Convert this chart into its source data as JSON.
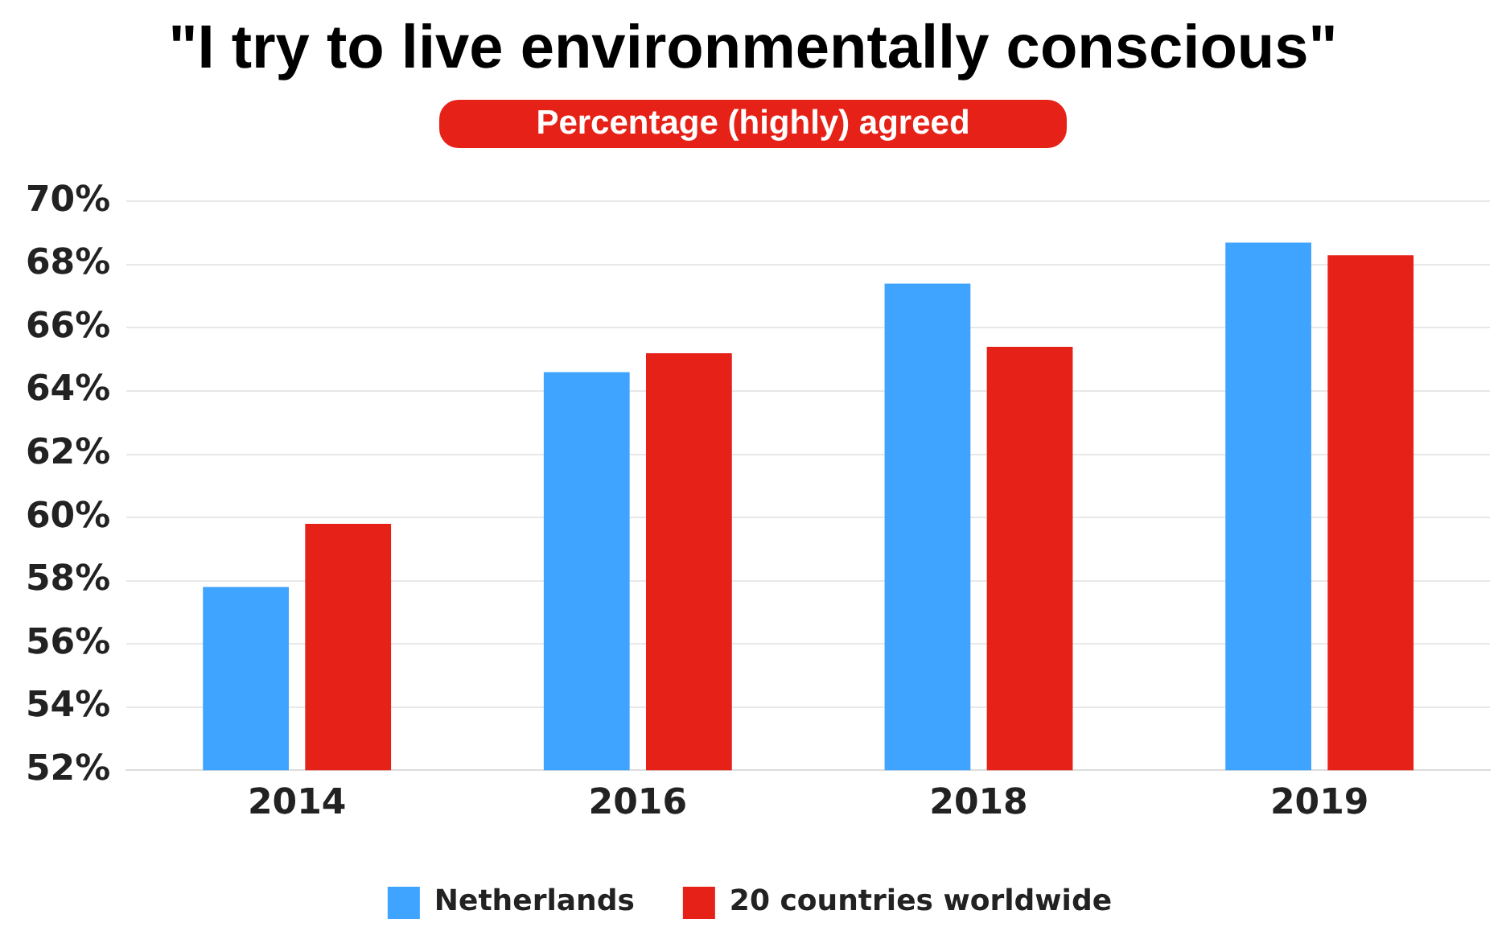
{
  "chart_data": {
    "type": "bar",
    "title": "\"I try to live environmentally conscious\"",
    "subtitle": "Percentage (highly) agreed",
    "categories": [
      "2014",
      "2016",
      "2018",
      "2019"
    ],
    "series": [
      {
        "name": "Netherlands",
        "color": "#3fa4ff",
        "values": [
          57.8,
          64.6,
          67.4,
          68.7
        ]
      },
      {
        "name": "20 countries worldwide",
        "color": "#e62117",
        "values": [
          59.8,
          65.2,
          65.4,
          68.3
        ]
      }
    ],
    "ylim": [
      52,
      70
    ],
    "yticks": [
      {
        "value": 52,
        "label": "52%"
      },
      {
        "value": 54,
        "label": "54%"
      },
      {
        "value": 56,
        "label": "56%"
      },
      {
        "value": 58,
        "label": "58%"
      },
      {
        "value": 60,
        "label": "60%"
      },
      {
        "value": 62,
        "label": "62%"
      },
      {
        "value": 64,
        "label": "64%"
      },
      {
        "value": 66,
        "label": "66%"
      },
      {
        "value": 68,
        "label": "68%"
      },
      {
        "value": 70,
        "label": "70%"
      }
    ],
    "grid": "y",
    "legend": "bottom"
  }
}
